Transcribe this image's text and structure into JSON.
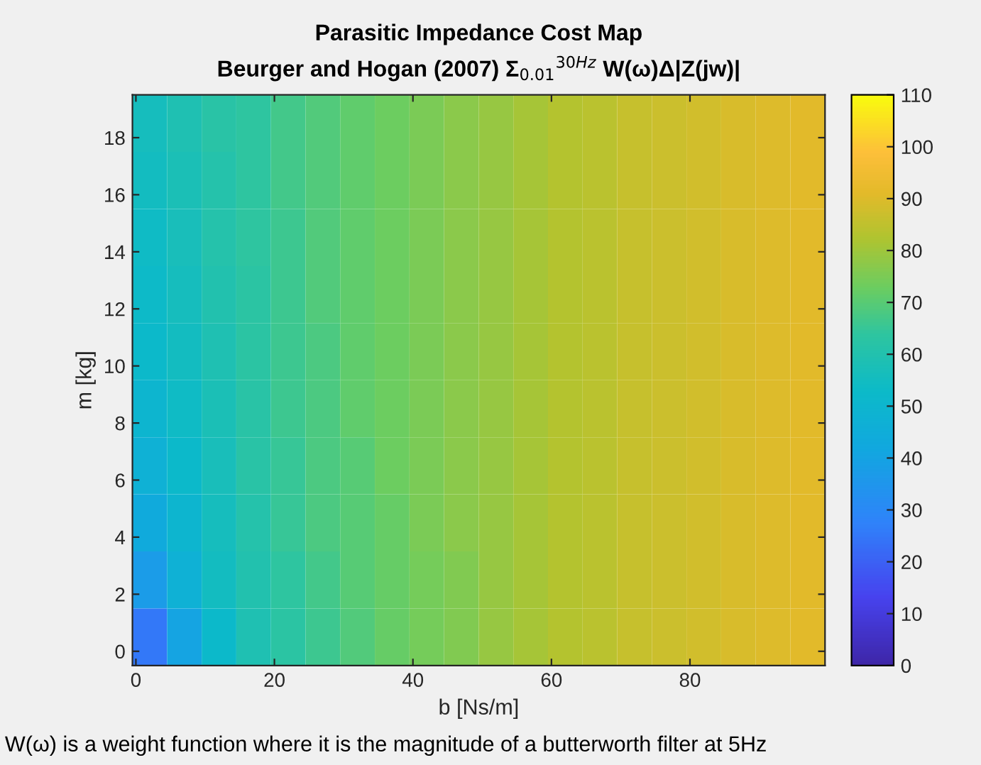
{
  "chart_data": {
    "type": "heatmap",
    "title": "Parasitic Impedance Cost Map",
    "subtitle": "Beurger and Hogan (2007) Σ$_{0.01}$$^{30Hz}$ W(ω)Δ|Z(jw)|",
    "xlabel": "b [Ns/m]",
    "ylabel": "m [kg]",
    "x": [
      2,
      7,
      12,
      17,
      22,
      27,
      32,
      37,
      42,
      47,
      52,
      57,
      62,
      67,
      72,
      77,
      82,
      87,
      92,
      97
    ],
    "y": [
      18.5,
      16.5,
      14.5,
      12.5,
      10.5,
      8.5,
      6.5,
      4.5,
      2.5,
      0.5
    ],
    "cells": [
      [
        56,
        59,
        62,
        64,
        67,
        69,
        71,
        73,
        75,
        77,
        79,
        81,
        83,
        84,
        86,
        87,
        88,
        89,
        90,
        91
      ],
      [
        55,
        58,
        61,
        64,
        67,
        69,
        71,
        73,
        75,
        77,
        79,
        81,
        83,
        84,
        86,
        87,
        88,
        89,
        90,
        91
      ],
      [
        54,
        57,
        61,
        64,
        66,
        69,
        71,
        73,
        75,
        77,
        79,
        81,
        83,
        84,
        86,
        87,
        88,
        89,
        90,
        91
      ],
      [
        53,
        56,
        60,
        63,
        66,
        69,
        71,
        73,
        75,
        77,
        79,
        81,
        83,
        84,
        86,
        87,
        88,
        89,
        90,
        91
      ],
      [
        52,
        55,
        59,
        63,
        66,
        68,
        71,
        73,
        75,
        77,
        79,
        81,
        83,
        84,
        86,
        87,
        88,
        89,
        90,
        91
      ],
      [
        50,
        54,
        58,
        62,
        66,
        68,
        71,
        73,
        75,
        77,
        79,
        81,
        83,
        84,
        86,
        87,
        88,
        89,
        90,
        91
      ],
      [
        47,
        52,
        57,
        62,
        65,
        68,
        70,
        73,
        75,
        77,
        79,
        81,
        83,
        84,
        86,
        87,
        88,
        89,
        90,
        91
      ],
      [
        43,
        50,
        56,
        61,
        65,
        68,
        70,
        72,
        75,
        77,
        79,
        81,
        83,
        84,
        86,
        87,
        88,
        89,
        90,
        91
      ],
      [
        37,
        47,
        55,
        60,
        64,
        67,
        70,
        72,
        74,
        76,
        79,
        81,
        83,
        84,
        86,
        87,
        88,
        89,
        90,
        91
      ],
      [
        25,
        40,
        52,
        59,
        63,
        66,
        69,
        72,
        74,
        76,
        79,
        81,
        83,
        84,
        86,
        87,
        88,
        89,
        90,
        91
      ]
    ],
    "xlim": [
      -0.5,
      99.5
    ],
    "ylim": [
      -0.5,
      19.5
    ],
    "xticks": [
      0,
      20,
      40,
      60,
      80
    ],
    "yticks": [
      0,
      2,
      4,
      6,
      8,
      10,
      12,
      14,
      16,
      18
    ],
    "clim": [
      0,
      110
    ],
    "cticks": [
      0,
      10,
      20,
      30,
      40,
      50,
      60,
      70,
      80,
      90,
      100,
      110
    ],
    "annotations": [
      "W(ω) is a weight function where it is the magnitude of a butterworth filter at 5Hz"
    ]
  }
}
